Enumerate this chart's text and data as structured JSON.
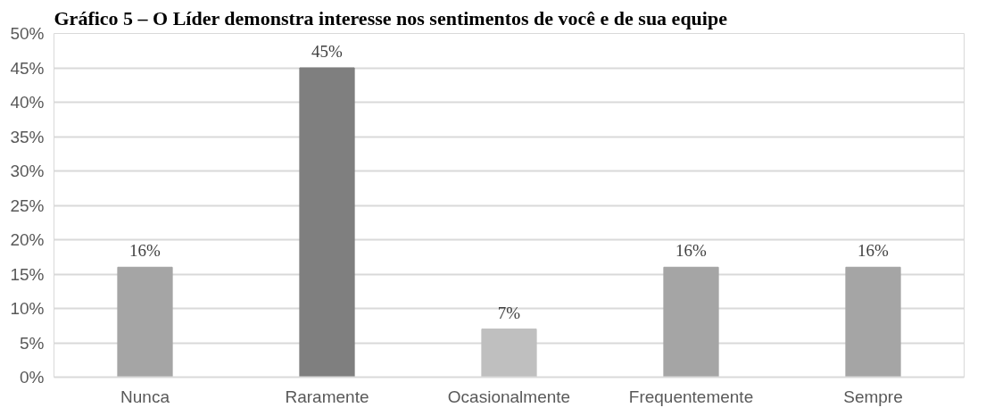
{
  "chart_data": {
    "type": "bar",
    "title": "Gráfico 5 – O Líder demonstra interesse nos sentimentos de você e de sua equipe",
    "categories": [
      "Nunca",
      "Raramente",
      "Ocasionalmente",
      "Frequentemente",
      "Sempre"
    ],
    "values": [
      16,
      45,
      7,
      16,
      16
    ],
    "colors": [
      "#a5a5a5",
      "#7f7f7f",
      "#bfbfbf",
      "#a5a5a5",
      "#a5a5a5"
    ],
    "ylim": [
      0,
      50
    ],
    "yticks": [
      {
        "value": 0,
        "label": "0%"
      },
      {
        "value": 5,
        "label": "5%"
      },
      {
        "value": 10,
        "label": "10%"
      },
      {
        "value": 15,
        "label": "15%"
      },
      {
        "value": 20,
        "label": "20%"
      },
      {
        "value": 25,
        "label": "25%"
      },
      {
        "value": 30,
        "label": "30%"
      },
      {
        "value": 35,
        "label": "35%"
      },
      {
        "value": 40,
        "label": "40%"
      },
      {
        "value": 45,
        "label": "45%"
      },
      {
        "value": 50,
        "label": "50%"
      }
    ],
    "value_labels": [
      "16%",
      "45%",
      "7%",
      "16%",
      "16%"
    ],
    "grid": "y"
  }
}
